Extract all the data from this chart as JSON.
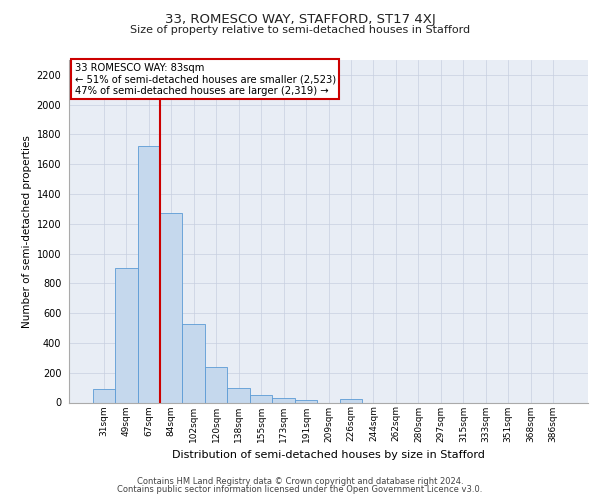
{
  "title": "33, ROMESCO WAY, STAFFORD, ST17 4XJ",
  "subtitle": "Size of property relative to semi-detached houses in Stafford",
  "xlabel": "Distribution of semi-detached houses by size in Stafford",
  "ylabel": "Number of semi-detached properties",
  "footer_line1": "Contains HM Land Registry data © Crown copyright and database right 2024.",
  "footer_line2": "Contains public sector information licensed under the Open Government Licence v3.0.",
  "annotation_line1": "33 ROMESCO WAY: 83sqm",
  "annotation_line2": "← 51% of semi-detached houses are smaller (2,523)",
  "annotation_line3": "47% of semi-detached houses are larger (2,319) →",
  "categories": [
    "31sqm",
    "49sqm",
    "67sqm",
    "84sqm",
    "102sqm",
    "120sqm",
    "138sqm",
    "155sqm",
    "173sqm",
    "191sqm",
    "209sqm",
    "226sqm",
    "244sqm",
    "262sqm",
    "280sqm",
    "297sqm",
    "315sqm",
    "333sqm",
    "351sqm",
    "368sqm",
    "386sqm"
  ],
  "values": [
    90,
    900,
    1720,
    1270,
    530,
    240,
    100,
    50,
    30,
    15,
    0,
    25,
    0,
    0,
    0,
    0,
    0,
    0,
    0,
    0,
    0
  ],
  "bar_color": "#c5d8ed",
  "bar_edge_color": "#5b9bd5",
  "vline_color": "#cc0000",
  "vline_x_index": 2,
  "ylim": [
    0,
    2300
  ],
  "yticks": [
    0,
    200,
    400,
    600,
    800,
    1000,
    1200,
    1400,
    1600,
    1800,
    2000,
    2200
  ],
  "grid_color": "#c8cfe0",
  "background_color": "#e8edf5",
  "box_edge_color": "#cc0000"
}
